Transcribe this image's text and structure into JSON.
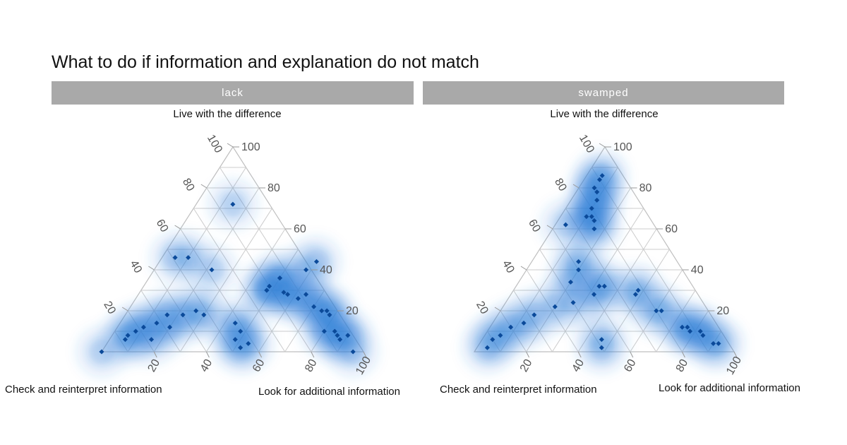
{
  "title": "What to do if information and explanation do not match",
  "chart_data": [
    {
      "type": "scatter",
      "subtype": "ternary-density",
      "panel": "lack",
      "axes": {
        "top": "Live with the difference",
        "left": "Check and reinterpret information",
        "right": "Look for additional information"
      },
      "tick_labels": [
        "20",
        "40",
        "60",
        "80",
        "100"
      ],
      "colors": {
        "density": "#2f7ed8",
        "point": "#0b4a9a",
        "grid": "#cccccc",
        "strip": "#a9a9a9"
      },
      "points": [
        {
          "live": 72,
          "look": 14
        },
        {
          "live": 46,
          "look": 5
        },
        {
          "live": 46,
          "look": 10
        },
        {
          "live": 40,
          "look": 22
        },
        {
          "live": 36,
          "look": 50
        },
        {
          "live": 36,
          "look": 50
        },
        {
          "live": 32,
          "look": 48
        },
        {
          "live": 30,
          "look": 48
        },
        {
          "live": 30,
          "look": 48
        },
        {
          "live": 29,
          "look": 55
        },
        {
          "live": 28,
          "look": 57
        },
        {
          "live": 28,
          "look": 64
        },
        {
          "live": 40,
          "look": 58
        },
        {
          "live": 44,
          "look": 60
        },
        {
          "live": 26,
          "look": 62
        },
        {
          "live": 22,
          "look": 70
        },
        {
          "live": 20,
          "look": 74
        },
        {
          "live": 20,
          "look": 76
        },
        {
          "live": 18,
          "look": 78
        },
        {
          "live": 10,
          "look": 80
        },
        {
          "live": 10,
          "look": 84
        },
        {
          "live": 8,
          "look": 86
        },
        {
          "live": 6,
          "look": 88
        },
        {
          "live": 8,
          "look": 90
        },
        {
          "live": 14,
          "look": 44
        },
        {
          "live": 10,
          "look": 48
        },
        {
          "live": 6,
          "look": 48
        },
        {
          "live": 2,
          "look": 52
        },
        {
          "live": 4,
          "look": 54
        },
        {
          "live": 18,
          "look": 30
        },
        {
          "live": 20,
          "look": 26
        },
        {
          "live": 18,
          "look": 22
        },
        {
          "live": 18,
          "look": 16
        },
        {
          "live": 14,
          "look": 14
        },
        {
          "live": 12,
          "look": 10
        },
        {
          "live": 10,
          "look": 8
        },
        {
          "live": 8,
          "look": 6
        },
        {
          "live": 6,
          "look": 6
        },
        {
          "live": 0,
          "look": 0
        },
        {
          "live": 0,
          "look": 96
        },
        {
          "live": 6,
          "look": 16
        },
        {
          "live": 12,
          "look": 20
        }
      ]
    },
    {
      "type": "scatter",
      "subtype": "ternary-density",
      "panel": "swamped",
      "axes": {
        "top": "Live with the difference",
        "left": "Check and reinterpret information",
        "right": "Look for additional information"
      },
      "tick_labels": [
        "20",
        "40",
        "60",
        "80",
        "100"
      ],
      "colors": {
        "density": "#2f7ed8",
        "point": "#0b4a9a",
        "grid": "#cccccc",
        "strip": "#a9a9a9"
      },
      "points": [
        {
          "live": 86,
          "look": 6
        },
        {
          "live": 84,
          "look": 6
        },
        {
          "live": 80,
          "look": 6
        },
        {
          "live": 78,
          "look": 8
        },
        {
          "live": 74,
          "look": 10
        },
        {
          "live": 70,
          "look": 10
        },
        {
          "live": 66,
          "look": 10
        },
        {
          "live": 66,
          "look": 12
        },
        {
          "live": 64,
          "look": 14
        },
        {
          "live": 60,
          "look": 16
        },
        {
          "live": 62,
          "look": 4
        },
        {
          "live": 44,
          "look": 18
        },
        {
          "live": 40,
          "look": 20
        },
        {
          "live": 34,
          "look": 20
        },
        {
          "live": 32,
          "look": 34
        },
        {
          "live": 32,
          "look": 32
        },
        {
          "live": 28,
          "look": 32
        },
        {
          "live": 24,
          "look": 26
        },
        {
          "live": 22,
          "look": 20
        },
        {
          "live": 18,
          "look": 14
        },
        {
          "live": 14,
          "look": 12
        },
        {
          "live": 12,
          "look": 8
        },
        {
          "live": 8,
          "look": 6
        },
        {
          "live": 6,
          "look": 4
        },
        {
          "live": 2,
          "look": 4
        },
        {
          "live": 30,
          "look": 48
        },
        {
          "live": 28,
          "look": 48
        },
        {
          "live": 20,
          "look": 60
        },
        {
          "live": 20,
          "look": 62
        },
        {
          "live": 12,
          "look": 74
        },
        {
          "live": 12,
          "look": 76
        },
        {
          "live": 10,
          "look": 78
        },
        {
          "live": 10,
          "look": 82
        },
        {
          "live": 8,
          "look": 84
        },
        {
          "live": 4,
          "look": 90
        },
        {
          "live": 4,
          "look": 92
        },
        {
          "live": 6,
          "look": 46
        },
        {
          "live": 2,
          "look": 48
        }
      ]
    }
  ],
  "panels": [
    {
      "strip": "lack",
      "top_label": "Live with the difference",
      "left_label": "Check and reinterpret information",
      "right_label": "Look for additional information"
    },
    {
      "strip": "swamped",
      "top_label": "Live with the difference",
      "left_label": "Check and reinterpret information",
      "right_label": "Look for additional information"
    }
  ]
}
